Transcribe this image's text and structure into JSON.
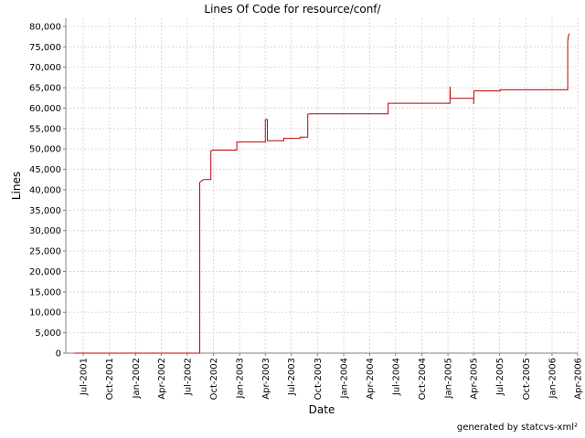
{
  "chart_data": {
    "type": "line",
    "title": "Lines Of Code for resource/conf/",
    "xlabel": "Date",
    "ylabel": "Lines",
    "grid": true,
    "legend": "none",
    "line_color": "#c00000",
    "ylim": [
      0,
      82000
    ],
    "xlim": [
      "2001-05-01",
      "2006-04-01"
    ],
    "yticks": [
      0,
      5000,
      10000,
      15000,
      20000,
      25000,
      30000,
      35000,
      40000,
      45000,
      50000,
      55000,
      60000,
      65000,
      70000,
      75000,
      80000
    ],
    "ytick_labels": [
      "0",
      "5,000",
      "10,000",
      "15,000",
      "20,000",
      "25,000",
      "30,000",
      "35,000",
      "40,000",
      "45,000",
      "50,000",
      "55,000",
      "60,000",
      "65,000",
      "70,000",
      "75,000",
      "80,000"
    ],
    "xticks": [
      "2001-07-01",
      "2001-10-01",
      "2002-01-01",
      "2002-04-01",
      "2002-07-01",
      "2002-10-01",
      "2003-01-01",
      "2003-04-01",
      "2003-07-01",
      "2003-10-01",
      "2004-01-01",
      "2004-04-01",
      "2004-07-01",
      "2004-10-01",
      "2005-01-01",
      "2005-04-01",
      "2005-07-01",
      "2005-10-01",
      "2006-01-01",
      "2006-04-01"
    ],
    "xtick_labels": [
      "Jul-2001",
      "Oct-2001",
      "Jan-2002",
      "Apr-2002",
      "Jul-2002",
      "Oct-2002",
      "Jan-2003",
      "Apr-2003",
      "Jul-2003",
      "Oct-2003",
      "Jan-2004",
      "Apr-2004",
      "Jul-2004",
      "Oct-2004",
      "Jan-2005",
      "Apr-2005",
      "Jul-2005",
      "Oct-2005",
      "Jan-2006",
      "Apr-2006"
    ],
    "series": [
      {
        "points": [
          [
            "2001-06-01",
            0
          ],
          [
            "2002-08-14",
            0
          ],
          [
            "2002-08-14",
            41800
          ],
          [
            "2002-08-20",
            42200
          ],
          [
            "2002-08-28",
            42500
          ],
          [
            "2002-09-22",
            42500
          ],
          [
            "2002-09-22",
            49500
          ],
          [
            "2002-09-28",
            49700
          ],
          [
            "2002-12-22",
            49700
          ],
          [
            "2002-12-22",
            51700
          ],
          [
            "2003-04-01",
            51700
          ],
          [
            "2003-04-01",
            57200
          ],
          [
            "2003-04-08",
            57200
          ],
          [
            "2003-04-08",
            52000
          ],
          [
            "2003-06-05",
            52000
          ],
          [
            "2003-06-05",
            52600
          ],
          [
            "2003-08-01",
            52600
          ],
          [
            "2003-08-01",
            52900
          ],
          [
            "2003-08-28",
            52900
          ],
          [
            "2003-08-28",
            58500
          ],
          [
            "2003-09-05",
            58600
          ],
          [
            "2004-06-05",
            58600
          ],
          [
            "2004-06-05",
            61200
          ],
          [
            "2005-01-08",
            61200
          ],
          [
            "2005-01-08",
            65300
          ],
          [
            "2005-01-09",
            62400
          ],
          [
            "2005-04-01",
            62400
          ],
          [
            "2005-04-01",
            61000
          ],
          [
            "2005-04-02",
            64200
          ],
          [
            "2005-07-03",
            64200
          ],
          [
            "2005-07-03",
            64500
          ],
          [
            "2006-02-25",
            64500
          ],
          [
            "2006-02-25",
            76500
          ],
          [
            "2006-02-28",
            77800
          ],
          [
            "2006-03-02",
            78200
          ]
        ]
      }
    ]
  },
  "footer": "generated by statcvs-xml²"
}
